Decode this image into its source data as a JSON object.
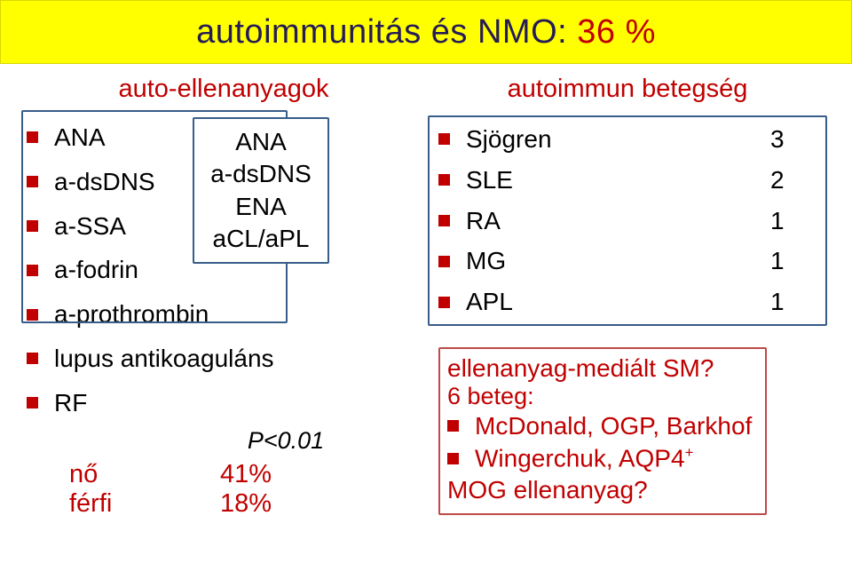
{
  "title": {
    "part1": "autoimmunitás és NMO: ",
    "part2": "36 %"
  },
  "left": {
    "header": "auto-ellenanyagok",
    "items": [
      "ANA",
      "a-dsDNS",
      "a-SSA",
      "a-fodrin",
      "a-prothrombin",
      "lupus antikoaguláns",
      "RF"
    ],
    "inner_box": [
      "ANA",
      "a-dsDNS",
      "ENA",
      "aCL/aPL"
    ],
    "pvalue": "P<0.01",
    "rows": [
      {
        "label": "nő",
        "value": "41%"
      },
      {
        "label": "férfi",
        "value": "18%"
      }
    ]
  },
  "right": {
    "header": "autoimmun betegség",
    "diseases": [
      {
        "name": "Sjögren",
        "count": "3"
      },
      {
        "name": "SLE",
        "count": "2"
      },
      {
        "name": "RA",
        "count": "1"
      },
      {
        "name": "MG",
        "count": "1"
      },
      {
        "name": "APL",
        "count": "1"
      }
    ],
    "box2": {
      "line1": "ellenanyag-mediált SM?",
      "line2": "6 beteg:",
      "b1": "McDonald, OGP, Barkhof",
      "b2a": "Wingerchuk, AQP4",
      "b2b": "+",
      "b3": "MOG ellenanyag?"
    }
  },
  "colors": {
    "title_bg": "#ffff00",
    "title_dark": "#251c57",
    "accent_red": "#c00000",
    "box_blue": "#385d8a",
    "box_red": "#be4b48"
  }
}
